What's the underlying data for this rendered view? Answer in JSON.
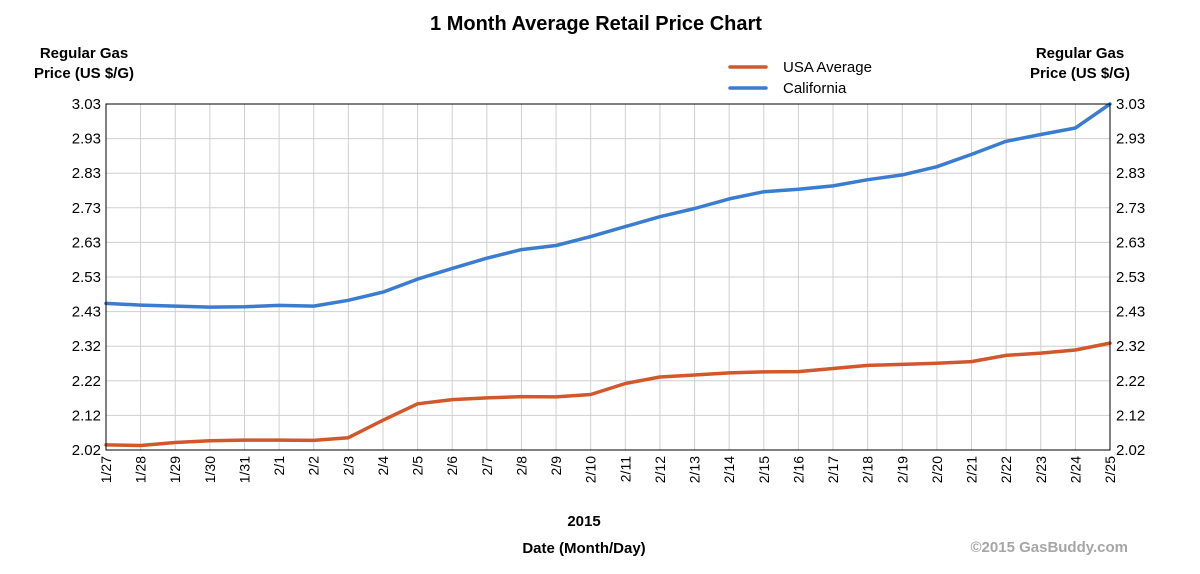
{
  "chart_data": {
    "type": "line",
    "title": "1 Month Average Retail Price Chart",
    "ylabel_left": [
      "Regular Gas",
      "Price (US $/G)"
    ],
    "ylabel_right": [
      "Regular Gas",
      "Price (US $/G)"
    ],
    "xlabel_year": "2015",
    "xlabel": "Date (Month/Day)",
    "credit": "©2015 GasBuddy.com",
    "legend_placement": "top-right",
    "grid": true,
    "ylim": [
      2.02,
      3.03
    ],
    "yticks": [
      "3.03",
      "2.93",
      "2.83",
      "2.73",
      "2.63",
      "2.53",
      "2.43",
      "2.32",
      "2.22",
      "2.12",
      "2.02"
    ],
    "x": [
      "1/27",
      "1/28",
      "1/29",
      "1/30",
      "1/31",
      "2/1",
      "2/2",
      "2/3",
      "2/4",
      "2/5",
      "2/6",
      "2/7",
      "2/8",
      "2/9",
      "2/10",
      "2/11",
      "2/12",
      "2/13",
      "2/14",
      "2/15",
      "2/16",
      "2/17",
      "2/18",
      "2/19",
      "2/20",
      "2/21",
      "2/22",
      "2/23",
      "2/24",
      "2/25"
    ],
    "series": [
      {
        "name": "USA Average",
        "color": "#d2582b",
        "values": [
          2.035,
          2.033,
          2.042,
          2.047,
          2.049,
          2.049,
          2.048,
          2.056,
          2.107,
          2.155,
          2.167,
          2.172,
          2.176,
          2.175,
          2.182,
          2.214,
          2.233,
          2.239,
          2.245,
          2.248,
          2.249,
          2.258,
          2.267,
          2.27,
          2.273,
          2.278,
          2.296,
          2.303,
          2.312,
          2.332
        ]
      },
      {
        "name": "California",
        "color": "#3a7dd0",
        "values": [
          2.448,
          2.443,
          2.44,
          2.437,
          2.438,
          2.442,
          2.44,
          2.457,
          2.481,
          2.519,
          2.55,
          2.58,
          2.605,
          2.617,
          2.643,
          2.672,
          2.701,
          2.725,
          2.753,
          2.774,
          2.781,
          2.791,
          2.809,
          2.823,
          2.847,
          2.883,
          2.921,
          2.941,
          2.96,
          3.03
        ]
      }
    ]
  }
}
